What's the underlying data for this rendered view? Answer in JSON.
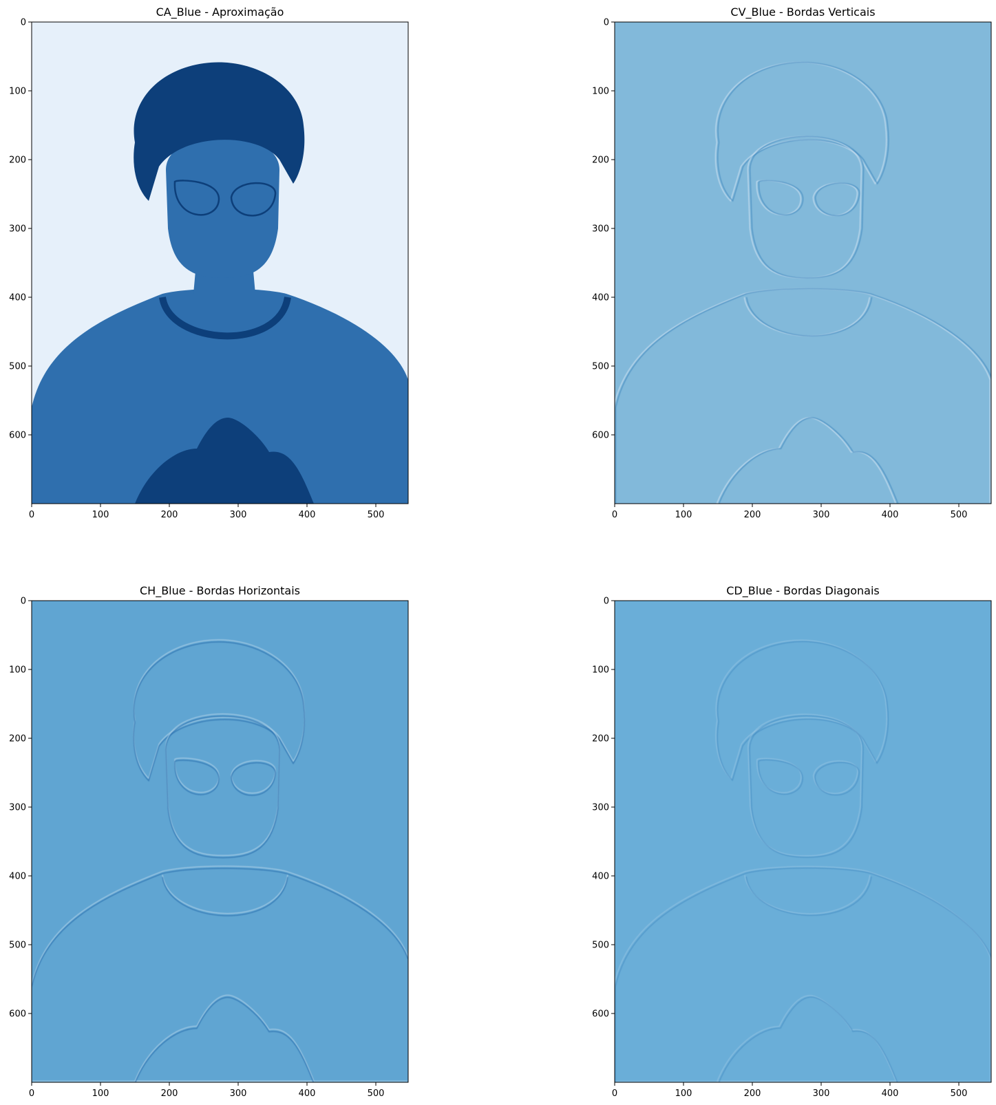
{
  "chart_data": [
    {
      "type": "heatmap",
      "title": "CA_Blue - Aproximação",
      "colormap": "Blues",
      "image_width": 547,
      "image_height": 700,
      "xlim": [
        0,
        547
      ],
      "ylim": [
        700,
        0
      ],
      "x_ticks": [
        0,
        100,
        200,
        300,
        400,
        500
      ],
      "y_ticks": [
        0,
        100,
        200,
        300,
        400,
        500,
        600
      ],
      "content": "photo-approximation",
      "background_color": "#e6f0fa",
      "subject_color": "#2f6fae",
      "dark_color": "#0d3f7a"
    },
    {
      "type": "heatmap",
      "title": "CV_Blue - Bordas Verticais",
      "colormap": "Blues",
      "image_width": 547,
      "image_height": 700,
      "xlim": [
        0,
        547
      ],
      "ylim": [
        700,
        0
      ],
      "x_ticks": [
        0,
        100,
        200,
        300,
        400,
        500
      ],
      "y_ticks": [
        0,
        100,
        200,
        300,
        400,
        500,
        600
      ],
      "content": "vertical-edges",
      "background_color": "#82b9da",
      "edge_light": "#c9dff0",
      "edge_dark": "#4a8ec2"
    },
    {
      "type": "heatmap",
      "title": "CH_Blue - Bordas Horizontais",
      "colormap": "Blues",
      "image_width": 547,
      "image_height": 700,
      "xlim": [
        0,
        547
      ],
      "ylim": [
        700,
        0
      ],
      "x_ticks": [
        0,
        100,
        200,
        300,
        400,
        500
      ],
      "y_ticks": [
        0,
        100,
        200,
        300,
        400,
        500,
        600
      ],
      "content": "horizontal-edges",
      "background_color": "#60a5d2",
      "edge_light": "#a9cde6",
      "edge_dark": "#2f74b2"
    },
    {
      "type": "heatmap",
      "title": "CD_Blue - Bordas Diagonais",
      "colormap": "Blues",
      "image_width": 547,
      "image_height": 700,
      "xlim": [
        0,
        547
      ],
      "ylim": [
        700,
        0
      ],
      "x_ticks": [
        0,
        100,
        200,
        300,
        400,
        500
      ],
      "y_ticks": [
        0,
        100,
        200,
        300,
        400,
        500,
        600
      ],
      "content": "diagonal-edges",
      "background_color": "#6aaed8",
      "edge_light": "#9fc8e5",
      "edge_dark": "#3f86c0"
    }
  ]
}
